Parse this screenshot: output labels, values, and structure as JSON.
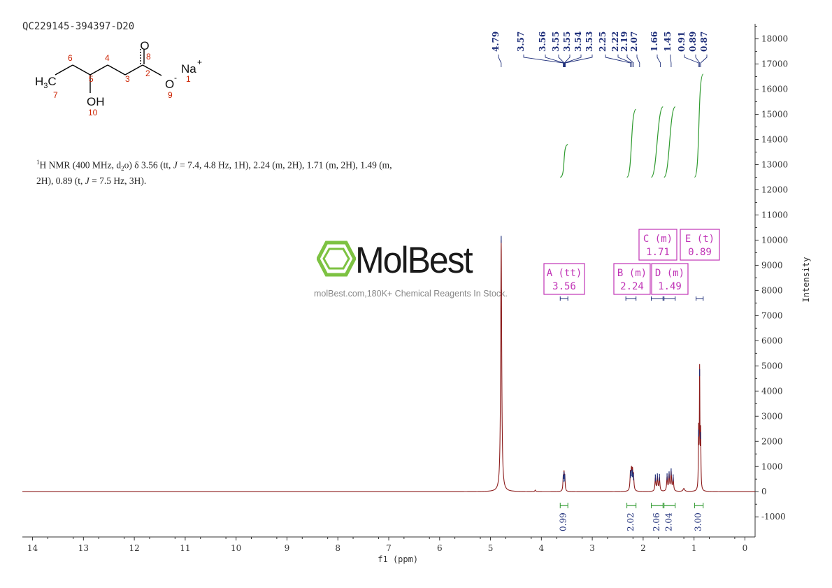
{
  "sample_id": "QC229145-394397-D20",
  "nmr_description": {
    "nucleus_sup": "1",
    "pre": "H NMR (400 MHz, d",
    "solvent_sub": "2",
    "post": "o) δ 3.56 (tt, ",
    "j1": "J",
    "mid1": " = 7.4, 4.8 Hz, 1H), 2.24 (m, 2H), 1.71 (m, 2H), 1.49 (m,",
    "line2_pre": "2H), 0.89 (t, ",
    "j2": "J",
    "line2_post": " = 7.5 Hz, 3H)."
  },
  "structure": {
    "atoms": [
      "H3C",
      "OH",
      "O",
      "O",
      "Na"
    ],
    "h3c_main": "H",
    "h3c_sub": "3",
    "h3c_tail": "C",
    "oh": "OH",
    "o_carbonyl": "O",
    "o_anion": "O",
    "anion_charge": "-",
    "na": "Na",
    "na_charge": "+",
    "numbers": [
      "7",
      "6",
      "5",
      "4",
      "3",
      "2",
      "8",
      "9",
      "1",
      "10"
    ]
  },
  "watermark": {
    "brand": "MolBest",
    "tagline": "molBest.com,180K+ Chemical Reagents In Stock.",
    "logo_color": "#7dc242"
  },
  "colors": {
    "spectrum": "#8b1a1a",
    "peak_labels": "#1f2f7a",
    "integral_curve": "#2e9a2e",
    "integral_bracket": "#2e9a2e",
    "multiplet_box": "#c034b6",
    "multiplet_bracket": "#1f2f7a",
    "structure_numbers": "#cc2200"
  },
  "chart_data": {
    "type": "line",
    "title": "",
    "xlabel": "f1 (ppm)",
    "ylabel": "Intensity",
    "xlim": [
      14.2,
      -0.2
    ],
    "ylim": [
      -1800,
      18600
    ],
    "x_ticks": [
      14,
      13,
      12,
      11,
      10,
      9,
      8,
      7,
      6,
      5,
      4,
      3,
      2,
      1,
      0
    ],
    "y_ticks": [
      -1000,
      0,
      1000,
      2000,
      3000,
      4000,
      5000,
      6000,
      7000,
      8000,
      9000,
      10000,
      11000,
      12000,
      13000,
      14000,
      15000,
      16000,
      17000,
      18000
    ],
    "series": [
      {
        "peaks": [
          {
            "ppm": 4.79,
            "height": 10000,
            "width": 0.012
          },
          {
            "ppm": 3.57,
            "height": 500,
            "width": 0.008
          },
          {
            "ppm": 3.555,
            "height": 620,
            "width": 0.008
          },
          {
            "ppm": 3.54,
            "height": 520,
            "width": 0.008
          },
          {
            "ppm": 2.25,
            "height": 650,
            "width": 0.01
          },
          {
            "ppm": 2.23,
            "height": 720,
            "width": 0.01
          },
          {
            "ppm": 2.21,
            "height": 690,
            "width": 0.01
          },
          {
            "ppm": 2.19,
            "height": 560,
            "width": 0.01
          },
          {
            "ppm": 1.76,
            "height": 520,
            "width": 0.01
          },
          {
            "ppm": 1.72,
            "height": 560,
            "width": 0.01
          },
          {
            "ppm": 1.68,
            "height": 540,
            "width": 0.01
          },
          {
            "ppm": 1.53,
            "height": 560,
            "width": 0.01
          },
          {
            "ppm": 1.49,
            "height": 640,
            "width": 0.01
          },
          {
            "ppm": 1.45,
            "height": 760,
            "width": 0.01
          },
          {
            "ppm": 1.41,
            "height": 520,
            "width": 0.01
          },
          {
            "ppm": 0.91,
            "height": 2300,
            "width": 0.006
          },
          {
            "ppm": 0.89,
            "height": 4700,
            "width": 0.006
          },
          {
            "ppm": 0.87,
            "height": 2200,
            "width": 0.006
          },
          {
            "ppm": 4.12,
            "height": 60,
            "width": 0.01
          },
          {
            "ppm": 1.2,
            "height": 120,
            "width": 0.02
          }
        ]
      }
    ],
    "peak_labels": [
      "4.79",
      "3.57",
      "3.56",
      "3.55",
      "3.55",
      "3.54",
      "3.53",
      "2.25",
      "2.22",
      "2.19",
      "2.07",
      "1.66",
      "1.45",
      "0.91",
      "0.89",
      "0.87"
    ],
    "integrals": [
      {
        "from": 3.63,
        "to": 3.48,
        "value": "0.99",
        "y_start": 12500,
        "y_end": 13800
      },
      {
        "from": 2.32,
        "to": 2.14,
        "value": "2.02",
        "y_start": 12500,
        "y_end": 15200
      },
      {
        "from": 1.84,
        "to": 1.61,
        "value": "2.06",
        "y_start": 12500,
        "y_end": 15300
      },
      {
        "from": 1.59,
        "to": 1.37,
        "value": "2.04",
        "y_start": 12500,
        "y_end": 15300
      },
      {
        "from": 0.99,
        "to": 0.82,
        "value": "3.00",
        "y_start": 12500,
        "y_end": 16600
      }
    ],
    "multiplets": [
      {
        "label": "A (tt)",
        "value": "3.56",
        "from": 3.63,
        "to": 3.48
      },
      {
        "label": "B (m)",
        "value": "2.24",
        "from": 2.34,
        "to": 2.14
      },
      {
        "label": "C (m)",
        "value": "1.71",
        "from": 1.84,
        "to": 1.61
      },
      {
        "label": "D (m)",
        "value": "1.49",
        "from": 1.59,
        "to": 1.37
      },
      {
        "label": "E (t)",
        "value": "0.89",
        "from": 0.96,
        "to": 0.82
      }
    ]
  }
}
